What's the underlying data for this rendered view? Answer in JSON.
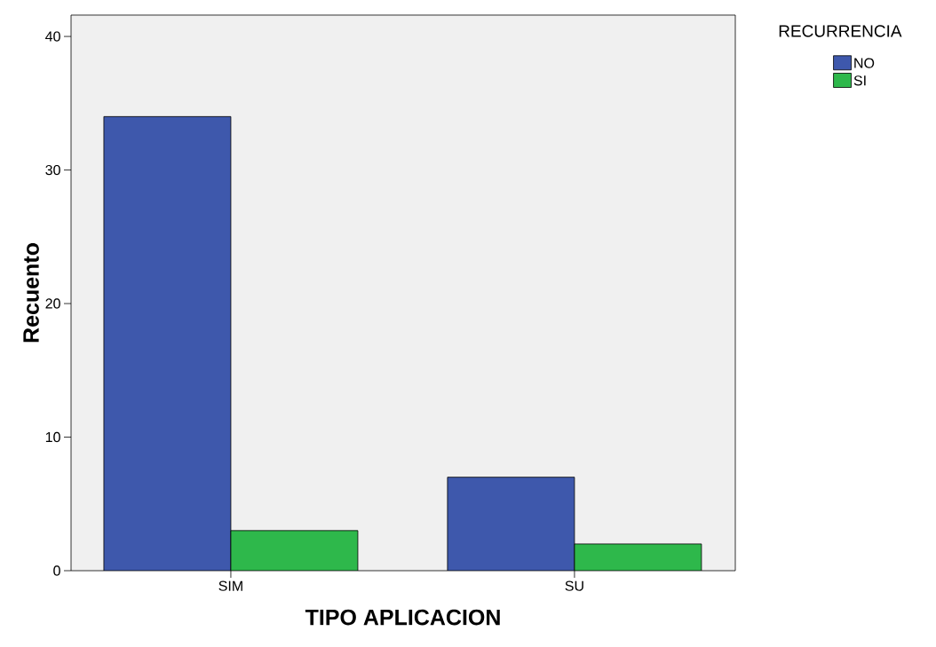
{
  "chart_data": {
    "type": "bar",
    "xlabel": "TIPO APLICACION",
    "ylabel": "Recuento",
    "legend_title": "RECURRENCIA",
    "categories": [
      "SIM",
      "SU"
    ],
    "series": [
      {
        "name": "NO",
        "color": "#3e58ac",
        "values": [
          34,
          7
        ]
      },
      {
        "name": "SI",
        "color": "#2eb84b",
        "values": [
          3,
          2
        ]
      }
    ],
    "ylim": [
      0,
      41.6
    ],
    "yticks": [
      0,
      10,
      20,
      30,
      40
    ],
    "grid": false,
    "legend": "right"
  }
}
